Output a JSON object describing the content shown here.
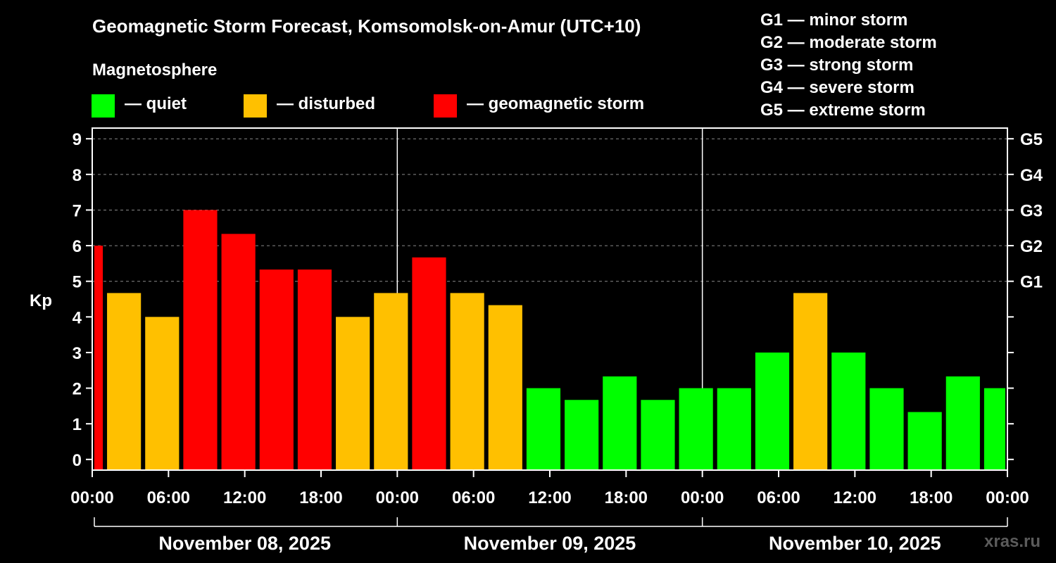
{
  "title": "Geomagnetic Storm Forecast, Komsomolsk-on-Amur (UTC+10)",
  "legend": {
    "heading": "Magnetosphere",
    "items": [
      {
        "label": "— quiet",
        "color": "#00ff00"
      },
      {
        "label": "— disturbed",
        "color": "#ffc000"
      },
      {
        "label": "— geomagnetic storm",
        "color": "#ff0000"
      }
    ]
  },
  "g_scale": [
    {
      "label": "G1 — minor storm"
    },
    {
      "label": "G2 — moderate storm"
    },
    {
      "label": "G3 — strong storm"
    },
    {
      "label": "G4 — severe storm"
    },
    {
      "label": "G5 — extreme storm"
    }
  ],
  "watermark": "xras.ru",
  "chart_data": {
    "type": "bar",
    "ylabel": "Kp",
    "ylim": [
      -0.3,
      9.3
    ],
    "yticks": [
      0,
      1,
      2,
      3,
      4,
      5,
      6,
      7,
      8,
      9
    ],
    "right_ticks": [
      {
        "value": 5,
        "label": "G1"
      },
      {
        "value": 6,
        "label": "G2"
      },
      {
        "value": 7,
        "label": "G3"
      },
      {
        "value": 8,
        "label": "G4"
      },
      {
        "value": 9,
        "label": "G5"
      }
    ],
    "xlim_hours": [
      0,
      72
    ],
    "xtick_labels": [
      "00:00",
      "06:00",
      "12:00",
      "18:00",
      "00:00",
      "06:00",
      "12:00",
      "18:00",
      "00:00",
      "06:00",
      "12:00",
      "18:00",
      "00:00"
    ],
    "dates": [
      "November 08, 2025",
      "November 09, 2025",
      "November 10, 2025"
    ],
    "grid": true,
    "colors": {
      "quiet": "#00ff00",
      "disturbed": "#ffc000",
      "storm": "#ff0000"
    },
    "bars": [
      {
        "start_hour": 0,
        "end_hour": 1,
        "kp": 6.0,
        "level": "storm"
      },
      {
        "start_hour": 1,
        "end_hour": 4,
        "kp": 4.67,
        "level": "disturbed"
      },
      {
        "start_hour": 4,
        "end_hour": 7,
        "kp": 4.0,
        "level": "disturbed"
      },
      {
        "start_hour": 7,
        "end_hour": 10,
        "kp": 7.0,
        "level": "storm"
      },
      {
        "start_hour": 10,
        "end_hour": 13,
        "kp": 6.33,
        "level": "storm"
      },
      {
        "start_hour": 13,
        "end_hour": 16,
        "kp": 5.33,
        "level": "storm"
      },
      {
        "start_hour": 16,
        "end_hour": 19,
        "kp": 5.33,
        "level": "storm"
      },
      {
        "start_hour": 19,
        "end_hour": 22,
        "kp": 4.0,
        "level": "disturbed"
      },
      {
        "start_hour": 22,
        "end_hour": 25,
        "kp": 4.67,
        "level": "disturbed"
      },
      {
        "start_hour": 25,
        "end_hour": 28,
        "kp": 5.67,
        "level": "storm"
      },
      {
        "start_hour": 28,
        "end_hour": 31,
        "kp": 4.67,
        "level": "disturbed"
      },
      {
        "start_hour": 31,
        "end_hour": 34,
        "kp": 4.33,
        "level": "disturbed"
      },
      {
        "start_hour": 34,
        "end_hour": 37,
        "kp": 2.0,
        "level": "quiet"
      },
      {
        "start_hour": 37,
        "end_hour": 40,
        "kp": 1.67,
        "level": "quiet"
      },
      {
        "start_hour": 40,
        "end_hour": 43,
        "kp": 2.33,
        "level": "quiet"
      },
      {
        "start_hour": 43,
        "end_hour": 46,
        "kp": 1.67,
        "level": "quiet"
      },
      {
        "start_hour": 46,
        "end_hour": 49,
        "kp": 2.0,
        "level": "quiet"
      },
      {
        "start_hour": 49,
        "end_hour": 52,
        "kp": 2.0,
        "level": "quiet"
      },
      {
        "start_hour": 52,
        "end_hour": 55,
        "kp": 3.0,
        "level": "quiet"
      },
      {
        "start_hour": 55,
        "end_hour": 58,
        "kp": 4.67,
        "level": "disturbed"
      },
      {
        "start_hour": 58,
        "end_hour": 61,
        "kp": 3.0,
        "level": "quiet"
      },
      {
        "start_hour": 61,
        "end_hour": 64,
        "kp": 2.0,
        "level": "quiet"
      },
      {
        "start_hour": 64,
        "end_hour": 67,
        "kp": 1.33,
        "level": "quiet"
      },
      {
        "start_hour": 67,
        "end_hour": 70,
        "kp": 2.33,
        "level": "quiet"
      },
      {
        "start_hour": 70,
        "end_hour": 72,
        "kp": 2.0,
        "level": "quiet"
      }
    ]
  }
}
